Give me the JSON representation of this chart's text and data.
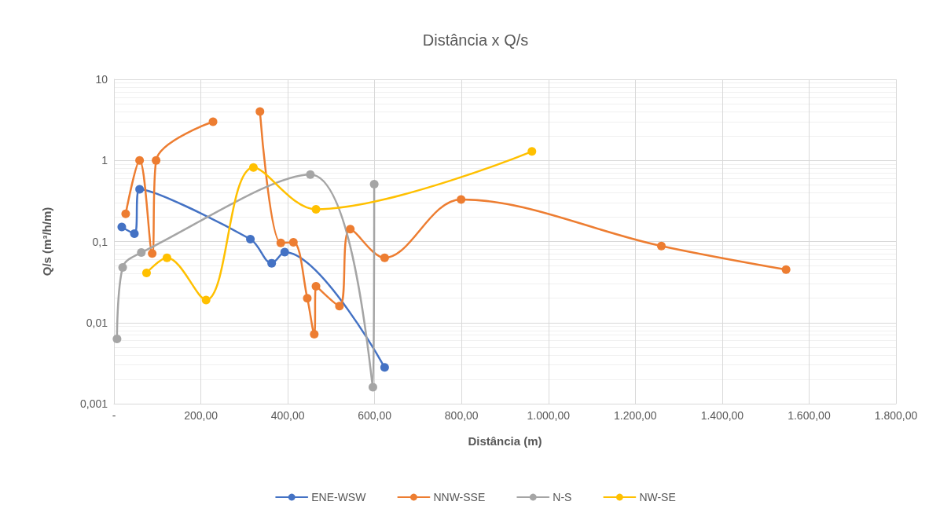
{
  "chart_data": {
    "type": "line",
    "title": "Distância x Q/s",
    "xlabel": "Distância (m)",
    "ylabel": "Q/s (m³/h/m)",
    "series": [
      {
        "name": "ENE-WSW",
        "color": "#4472c4",
        "x": [
          18,
          47,
          59,
          314,
          363,
          393,
          623
        ],
        "values": [
          0.151,
          0.125,
          0.44,
          0.107,
          0.054,
          0.074,
          0.0028
        ]
      },
      {
        "name": "NNW-SSE",
        "color": "#ed7d31",
        "x": [
          27,
          59,
          88,
          97,
          228,
          null,
          336,
          384,
          413,
          445,
          461,
          465,
          519,
          544,
          623,
          799,
          1260,
          1547
        ],
        "values": [
          0.22,
          1,
          0.071,
          1,
          3.0,
          null,
          4.0,
          0.096,
          0.098,
          0.02,
          0.0072,
          0.028,
          0.016,
          0.142,
          0.063,
          0.33,
          0.088,
          0.045
        ]
      },
      {
        "name": "N-S",
        "color": "#a5a5a5",
        "x": [
          7,
          20,
          63,
          452,
          596,
          599
        ],
        "values": [
          0.0063,
          0.048,
          0.073,
          0.67,
          0.0016,
          0.51
        ]
      },
      {
        "name": "NW-SE",
        "color": "#ffc000",
        "x": [
          75,
          122,
          212,
          321,
          465,
          962
        ],
        "values": [
          0.041,
          0.063,
          0.019,
          0.82,
          0.25,
          1.29
        ]
      }
    ],
    "xlim": [
      0,
      1800
    ],
    "xticks": [
      {
        "value": 0,
        "label": "-"
      },
      {
        "value": 200,
        "label": "200,00"
      },
      {
        "value": 400,
        "label": "400,00"
      },
      {
        "value": 600,
        "label": "600,00"
      },
      {
        "value": 800,
        "label": "800,00"
      },
      {
        "value": 1000,
        "label": "1.000,00"
      },
      {
        "value": 1200,
        "label": "1.200,00"
      },
      {
        "value": 1400,
        "label": "1.400,00"
      },
      {
        "value": 1600,
        "label": "1.600,00"
      },
      {
        "value": 1800,
        "label": "1.800,00"
      }
    ],
    "ylim": [
      0.001,
      10
    ],
    "yticks": [
      {
        "value": 0.001,
        "label": "0,001"
      },
      {
        "value": 0.01,
        "label": "0,01"
      },
      {
        "value": 0.1,
        "label": "0,1"
      },
      {
        "value": 1,
        "label": "1"
      },
      {
        "value": 10,
        "label": "10"
      }
    ],
    "log": "y",
    "grid": true,
    "legend": "bottom",
    "marker": "circle",
    "line_style": "solid"
  }
}
